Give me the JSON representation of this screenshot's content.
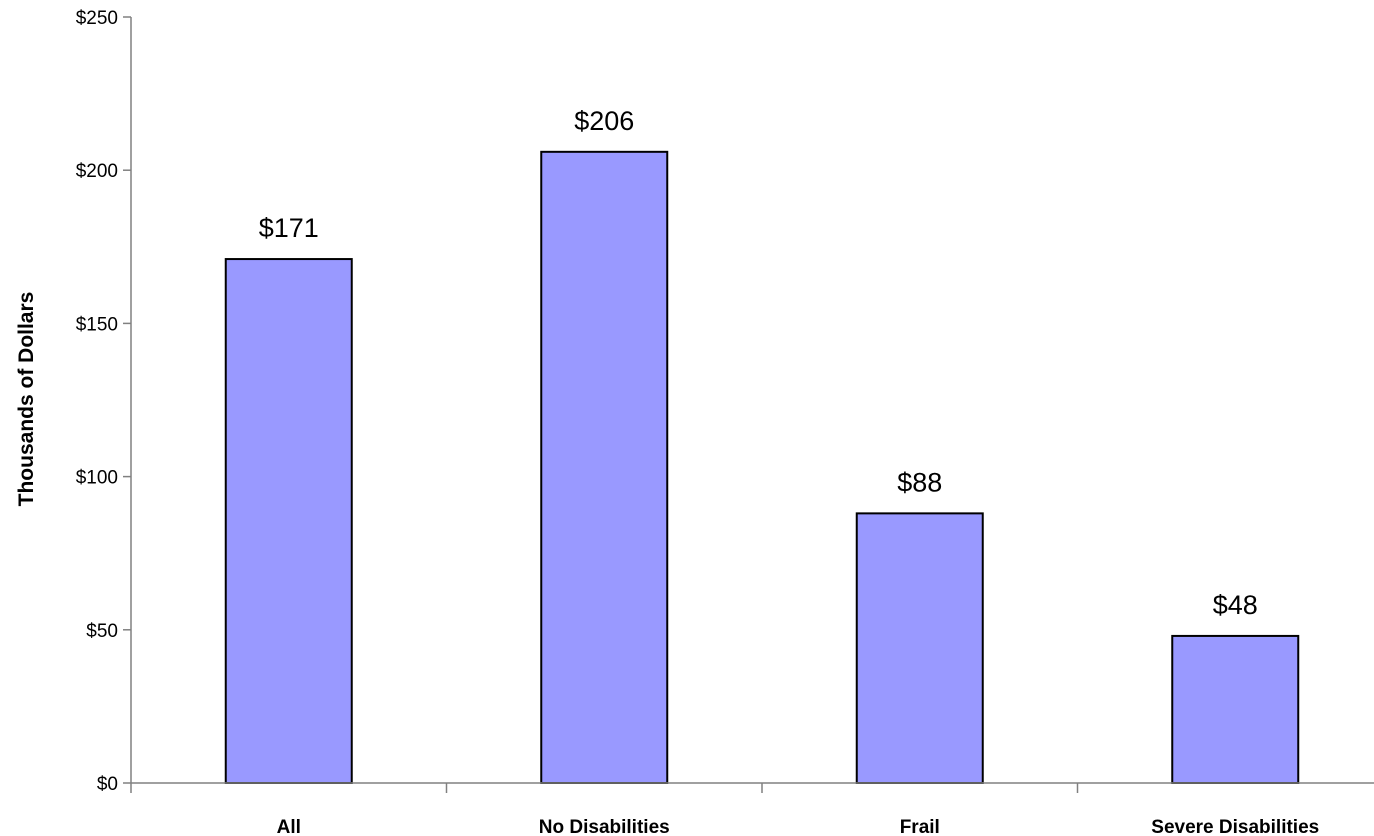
{
  "chart_data": {
    "type": "bar",
    "categories": [
      "All",
      "No Disabilities",
      "Frail",
      "Severe Disabilities"
    ],
    "values": [
      171,
      206,
      88,
      48
    ],
    "data_labels": [
      "$171",
      "$206",
      "$88",
      "$48"
    ],
    "title": "",
    "xlabel": "",
    "ylabel": "Thousands of Dollars",
    "ylim": [
      0,
      250
    ],
    "yticks": [
      0,
      50,
      100,
      150,
      200,
      250
    ],
    "ytick_labels": [
      "$0",
      "$50",
      "$100",
      "$150",
      "$200",
      "$250"
    ],
    "grid": false,
    "legend": "none",
    "colors": {
      "bar_fill": "#9999FF",
      "bar_stroke": "#000000",
      "axis": "#808080"
    }
  }
}
